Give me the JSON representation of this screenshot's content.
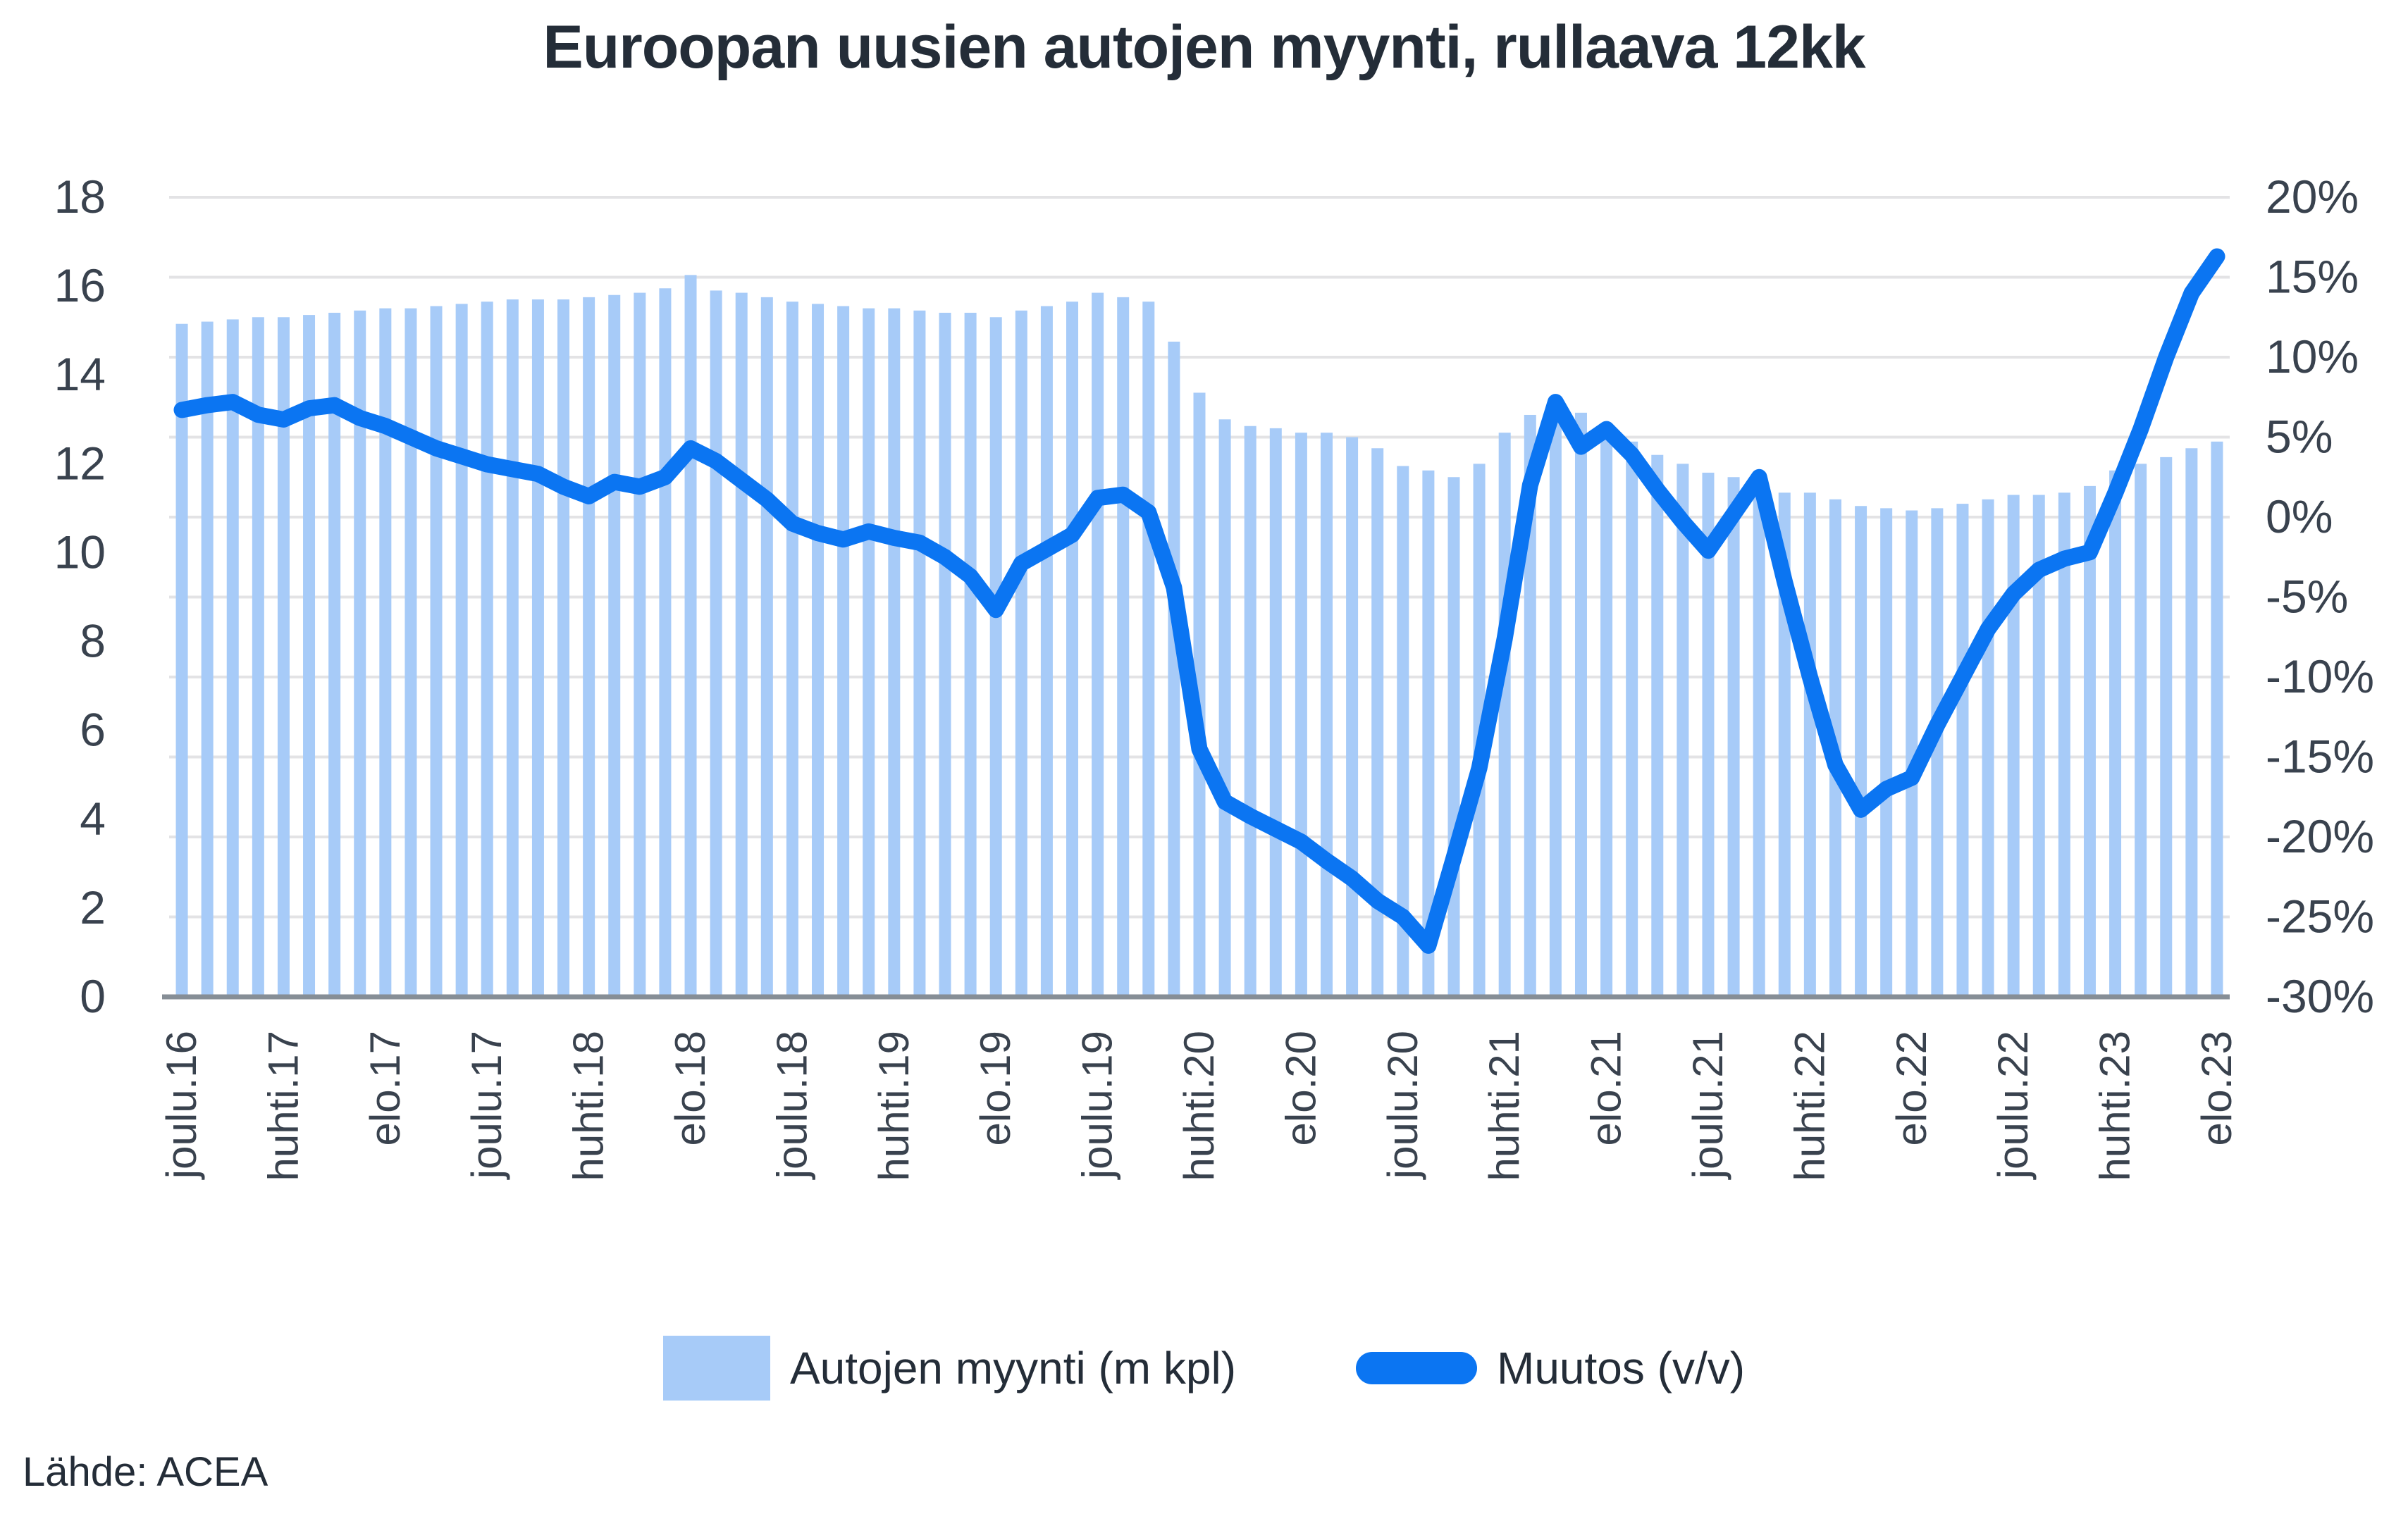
{
  "title": "Euroopan uusien autojen myynti, rullaava 12kk",
  "source": "Lähde: ACEA",
  "legend": {
    "bar_label": "Autojen myynti (m kpl)",
    "line_label": "Muutos (v/v)"
  },
  "colors": {
    "bar": "#a7cbf8",
    "line": "#0b75f2",
    "grid": "#e3e3e5",
    "axis_line": "#868e96",
    "text": "#242d38",
    "axis_text": "#39424e"
  },
  "chart_data": {
    "type": "combo-bar-line",
    "x_monthly_start": "joulu.16",
    "x_monthly_end": "elo.23",
    "x_tick_every_n_months": 4,
    "x_tick_labels": [
      "joulu.16",
      "huhti.17",
      "elo.17",
      "joulu.17",
      "huhti.18",
      "elo.18",
      "joulu.18",
      "huhti.19",
      "elo.19",
      "joulu.19",
      "huhti.20",
      "elo.20",
      "joulu.20",
      "huhti.21",
      "elo.21",
      "joulu.21",
      "huhti.22",
      "elo.22",
      "joulu.22",
      "huhti.23",
      "elo.23"
    ],
    "left_axis": {
      "min": 0,
      "max": 18,
      "tick_labels": [
        "18",
        "16",
        "14",
        "12",
        "10",
        "8",
        "6",
        "4",
        "2",
        "0"
      ]
    },
    "right_axis": {
      "min": -30,
      "max": 20,
      "tick_labels": [
        "20%",
        "15%",
        "10%",
        "5%",
        "0%",
        "-5%",
        "-10%",
        "-15%",
        "-20%",
        "-25%",
        "-30%"
      ]
    },
    "grid": true,
    "legend_position": "bottom",
    "series": [
      {
        "name": "Autojen myynti (m kpl)",
        "type": "bar",
        "axis": "left",
        "unit": "million units",
        "values": [
          15.15,
          15.2,
          15.25,
          15.3,
          15.3,
          15.35,
          15.4,
          15.45,
          15.5,
          15.5,
          15.55,
          15.6,
          15.65,
          15.7,
          15.7,
          15.7,
          15.75,
          15.8,
          15.85,
          15.95,
          16.25,
          15.9,
          15.85,
          15.75,
          15.65,
          15.6,
          15.55,
          15.5,
          15.5,
          15.45,
          15.4,
          15.4,
          15.3,
          15.45,
          15.55,
          15.65,
          15.85,
          15.75,
          15.65,
          14.75,
          13.6,
          13.0,
          12.85,
          12.8,
          12.7,
          12.7,
          12.6,
          12.35,
          11.95,
          11.85,
          11.7,
          12.0,
          12.7,
          13.1,
          13.35,
          13.15,
          12.85,
          12.5,
          12.2,
          12.0,
          11.8,
          11.7,
          11.55,
          11.35,
          11.35,
          11.2,
          11.05,
          11.0,
          10.95,
          11.0,
          11.1,
          11.2,
          11.3,
          11.3,
          11.35,
          11.5,
          11.85,
          12.0,
          12.15,
          12.35,
          12.5
        ]
      },
      {
        "name": "Muutos (v/v)",
        "type": "line",
        "axis": "right",
        "unit": "%",
        "values": [
          6.7,
          7.0,
          7.2,
          6.4,
          6.1,
          6.8,
          7.0,
          6.2,
          5.7,
          5.0,
          4.3,
          3.8,
          3.3,
          3.0,
          2.7,
          1.9,
          1.3,
          2.2,
          1.9,
          2.5,
          4.3,
          3.5,
          2.3,
          1.1,
          -0.4,
          -1.0,
          -1.4,
          -0.9,
          -1.3,
          -1.6,
          -2.5,
          -3.7,
          -5.8,
          -2.9,
          -2.0,
          -1.1,
          1.2,
          1.4,
          0.3,
          -4.4,
          -14.5,
          -17.8,
          -18.7,
          -19.5,
          -20.3,
          -21.5,
          -22.6,
          -24.0,
          -25.0,
          -26.8,
          -21.3,
          -15.7,
          -7.6,
          2.0,
          7.2,
          4.4,
          5.5,
          3.9,
          1.7,
          -0.3,
          -2.1,
          0.2,
          2.5,
          -4.0,
          -10.0,
          -15.5,
          -18.3,
          -17.0,
          -16.3,
          -13.0,
          -10.0,
          -7.0,
          -4.8,
          -3.3,
          -2.6,
          -2.2,
          1.5,
          5.5,
          10.0,
          14.0,
          16.3
        ]
      }
    ]
  }
}
